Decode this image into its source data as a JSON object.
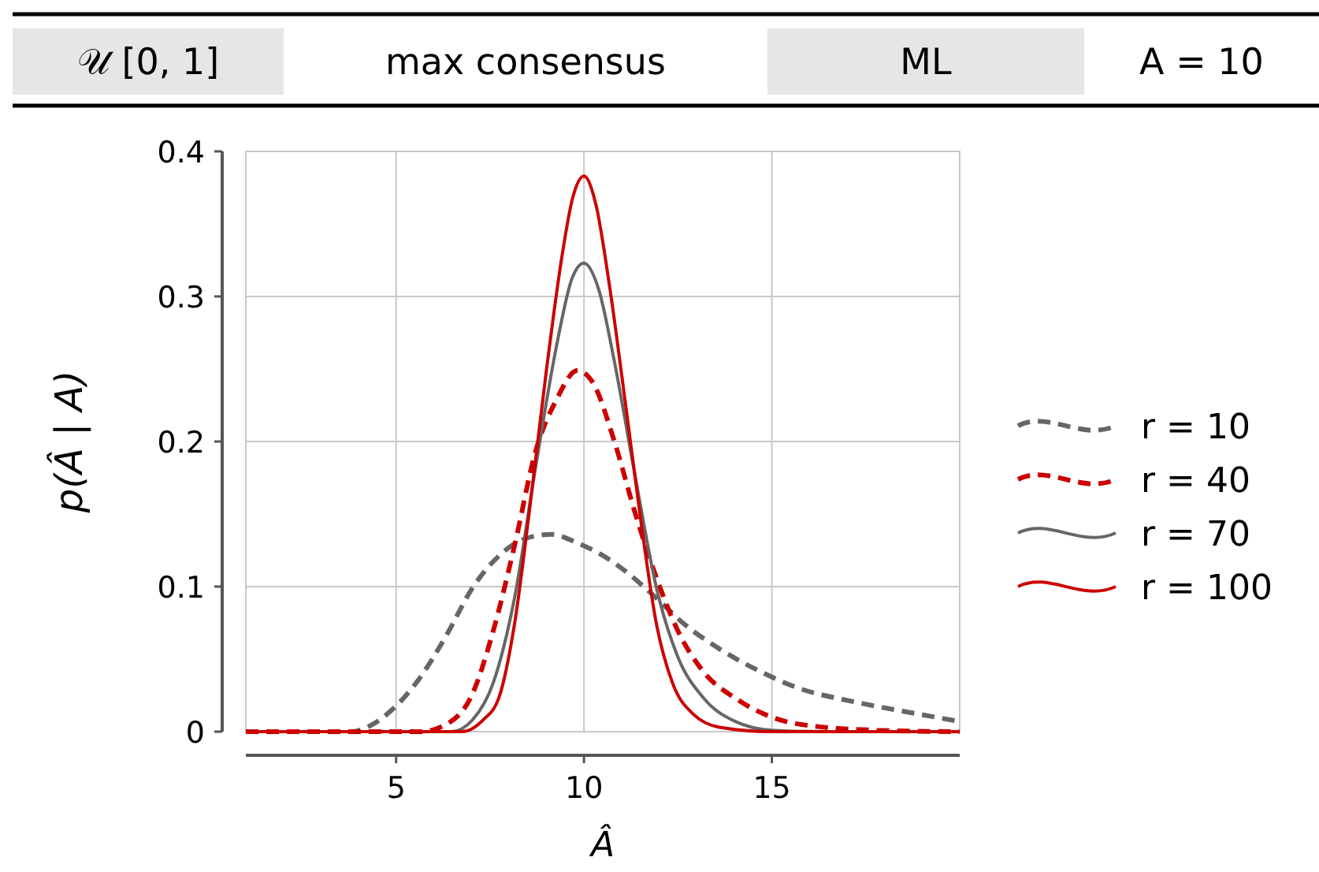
{
  "chart_data": {
    "type": "line",
    "xlabel": "Â",
    "ylabel": "p(Â | A)",
    "annotations": [
      "𝒰 [0, 1]",
      "max consensus",
      "ML",
      "A = 10"
    ],
    "xlim": [
      1,
      20
    ],
    "ylim": [
      0,
      0.4
    ],
    "xticks": [
      5,
      10,
      15
    ],
    "yticks": [
      0,
      0.1,
      0.2,
      0.3,
      0.4
    ],
    "grid": true,
    "legend": "right",
    "series": [
      {
        "name": "r = 10",
        "color": "#666666",
        "line_style": "dashed",
        "x": [
          1,
          3.81,
          4.37,
          4.93,
          5.63,
          6.33,
          7.03,
          7.73,
          8.43,
          9.13,
          9.83,
          10.53,
          11.23,
          11.93,
          12.63,
          13.61,
          14.73,
          15.71,
          17.11,
          18.51,
          20
        ],
        "values": [
          0,
          0,
          0.005,
          0.016,
          0.037,
          0.066,
          0.099,
          0.121,
          0.133,
          0.136,
          0.13,
          0.121,
          0.108,
          0.092,
          0.075,
          0.057,
          0.041,
          0.03,
          0.021,
          0.014,
          0.007
        ]
      },
      {
        "name": "r = 40",
        "color": "#cc0000",
        "line_style": "dashed",
        "x": [
          1,
          5.63,
          6.33,
          7.03,
          7.59,
          8.15,
          8.71,
          9.27,
          9.83,
          10.25,
          10.81,
          11.37,
          11.93,
          12.49,
          13.19,
          14.03,
          15,
          16.4,
          17.8,
          20
        ],
        "values": [
          0,
          0,
          0.005,
          0.026,
          0.07,
          0.128,
          0.193,
          0.229,
          0.249,
          0.24,
          0.2,
          0.15,
          0.106,
          0.07,
          0.041,
          0.023,
          0.01,
          0.003,
          0.001,
          0
        ]
      },
      {
        "name": "r = 70",
        "color": "#666666",
        "line_style": "solid",
        "x": [
          1,
          6.0,
          6.47,
          7.03,
          7.59,
          8.15,
          8.71,
          9.27,
          9.69,
          10,
          10.39,
          10.81,
          11.37,
          11.93,
          12.49,
          13.19,
          14.03,
          15,
          16.4,
          20
        ],
        "values": [
          0,
          0,
          0,
          0.008,
          0.034,
          0.092,
          0.182,
          0.266,
          0.313,
          0.323,
          0.305,
          0.255,
          0.175,
          0.099,
          0.052,
          0.023,
          0.007,
          0.001,
          0,
          0
        ]
      },
      {
        "name": "r = 100",
        "color": "#cc0000",
        "line_style": "solid",
        "x": [
          1,
          6.2,
          6.75,
          7.31,
          7.73,
          8.15,
          8.57,
          8.99,
          9.41,
          9.69,
          10,
          10.32,
          10.67,
          11.09,
          11.51,
          11.93,
          12.35,
          12.91,
          13.61,
          15,
          20
        ],
        "values": [
          0,
          0,
          0,
          0.008,
          0.023,
          0.074,
          0.157,
          0.247,
          0.327,
          0.367,
          0.383,
          0.363,
          0.309,
          0.229,
          0.146,
          0.074,
          0.034,
          0.012,
          0.003,
          0,
          0
        ]
      }
    ]
  }
}
